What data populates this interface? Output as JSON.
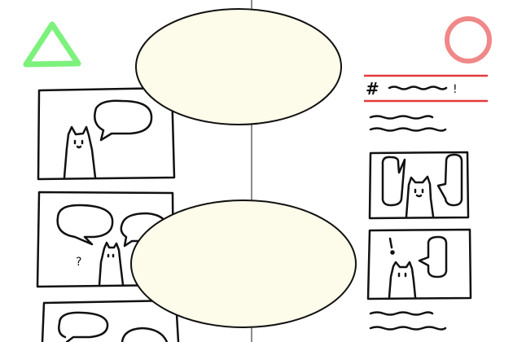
{
  "colors": {
    "background": "#ffffff",
    "ink": "#111111",
    "divider": "#8c8c8c",
    "triangle_mark": "#7cf27c",
    "circle_mark": "#f08888",
    "red_rule": "#e23a3a",
    "bubble_fill": "#fdfbe9"
  },
  "marks": {
    "left": "triangle-mark-icon",
    "right": "circle-mark-icon"
  },
  "right_column": {
    "hashtag": "#",
    "exclamation": "!"
  },
  "left_column": {
    "question_mark": "?"
  },
  "icons": [
    "cat-icon",
    "speech-bubble-icon",
    "triangle-mark-icon",
    "circle-mark-icon"
  ]
}
